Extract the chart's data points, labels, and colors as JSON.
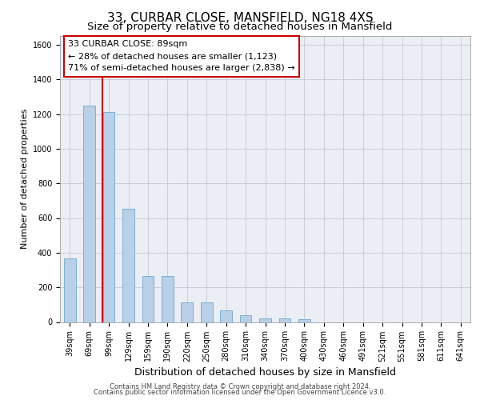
{
  "title1": "33, CURBAR CLOSE, MANSFIELD, NG18 4XS",
  "title2": "Size of property relative to detached houses in Mansfield",
  "xlabel": "Distribution of detached houses by size in Mansfield",
  "ylabel": "Number of detached properties",
  "footer1": "Contains HM Land Registry data © Crown copyright and database right 2024.",
  "footer2": "Contains public sector information licensed under the Open Government Licence v3.0.",
  "categories": [
    "39sqm",
    "69sqm",
    "99sqm",
    "129sqm",
    "159sqm",
    "190sqm",
    "220sqm",
    "250sqm",
    "280sqm",
    "310sqm",
    "340sqm",
    "370sqm",
    "400sqm",
    "430sqm",
    "460sqm",
    "491sqm",
    "521sqm",
    "551sqm",
    "581sqm",
    "611sqm",
    "641sqm"
  ],
  "values": [
    365,
    1250,
    1210,
    655,
    265,
    265,
    112,
    112,
    65,
    40,
    20,
    20,
    15,
    0,
    0,
    0,
    0,
    0,
    0,
    0,
    0
  ],
  "bar_color": "#b8d0e8",
  "bar_edge_color": "#7aafd4",
  "annotation_box_text1": "33 CURBAR CLOSE: 89sqm",
  "annotation_box_text2": "← 28% of detached houses are smaller (1,123)",
  "annotation_box_text3": "71% of semi-detached houses are larger (2,838) →",
  "annotation_line_color": "#cc0000",
  "annotation_box_edge_color": "#cc0000",
  "ylim": [
    0,
    1650
  ],
  "yticks": [
    0,
    200,
    400,
    600,
    800,
    1000,
    1200,
    1400,
    1600
  ],
  "grid_color": "#c8c8d0",
  "bg_color": "#eceef5",
  "title1_fontsize": 11,
  "title2_fontsize": 9.5,
  "ylabel_fontsize": 8,
  "xlabel_fontsize": 9,
  "footer_fontsize": 6,
  "tick_fontsize": 7,
  "annot_fontsize": 8
}
